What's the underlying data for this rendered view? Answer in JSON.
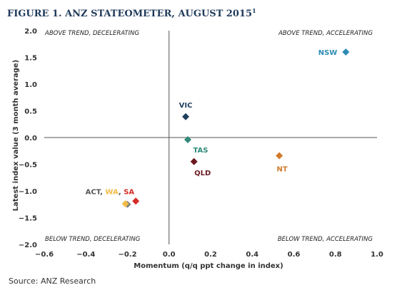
{
  "chart_data": {
    "type": "scatter",
    "title": "FIGURE 1. ANZ STATEOMETER, AUGUST 2015",
    "title_footnote": "1",
    "xlabel": "Momentum (q/q ppt change in index)",
    "ylabel": "Latest index value (3 month average)",
    "xlim": [
      -0.6,
      1.0
    ],
    "ylim": [
      -2.0,
      2.0
    ],
    "xticks": [
      -0.6,
      -0.4,
      -0.2,
      0.0,
      0.2,
      0.4,
      0.6,
      0.8,
      1.0
    ],
    "yticks": [
      -2.0,
      -1.5,
      -1.0,
      -0.5,
      0.0,
      0.5,
      1.0,
      1.5,
      2.0
    ],
    "xtick_labels": [
      "−0.6",
      "−0.4",
      "−0.2",
      "0.0",
      "0.2",
      "0.4",
      "0.6",
      "0.8",
      "1.0"
    ],
    "ytick_labels": [
      "−2.0",
      "−1.5",
      "−1.0",
      "−0.5",
      "0.0",
      "0.5",
      "1.0",
      "1.5",
      "2.0"
    ],
    "grid": false,
    "quadrant_labels": {
      "top_left": "ABOVE TREND, DECELERATING",
      "top_right": "ABOVE TREND, ACCELERATING",
      "bottom_left": "BELOW TREND, DECELERATING",
      "bottom_right": "BELOW TREND, ACCELERATING"
    },
    "points": [
      {
        "name": "NSW",
        "x": 0.85,
        "y": 1.6,
        "color": "#2e8bb5"
      },
      {
        "name": "VIC",
        "x": 0.08,
        "y": 0.39,
        "color": "#1f3f5f"
      },
      {
        "name": "TAS",
        "x": 0.09,
        "y": -0.04,
        "color": "#2f8a7a"
      },
      {
        "name": "QLD",
        "x": 0.12,
        "y": -0.45,
        "color": "#6a1820"
      },
      {
        "name": "NT",
        "x": 0.53,
        "y": -0.34,
        "color": "#d07a2a"
      },
      {
        "name": "ACT",
        "x": -0.2,
        "y": -1.25,
        "color": "#7f7f7f"
      },
      {
        "name": "WA",
        "x": -0.21,
        "y": -1.24,
        "color": "#f2bb45"
      },
      {
        "name": "SA",
        "x": -0.16,
        "y": -1.19,
        "color": "#d52b27"
      }
    ],
    "label_colors": {
      "ACT": "#555555",
      "WA": "#f2bb45",
      "SA": "#d52b27",
      "separator": "#555555"
    }
  },
  "source": "Source: ANZ Research"
}
